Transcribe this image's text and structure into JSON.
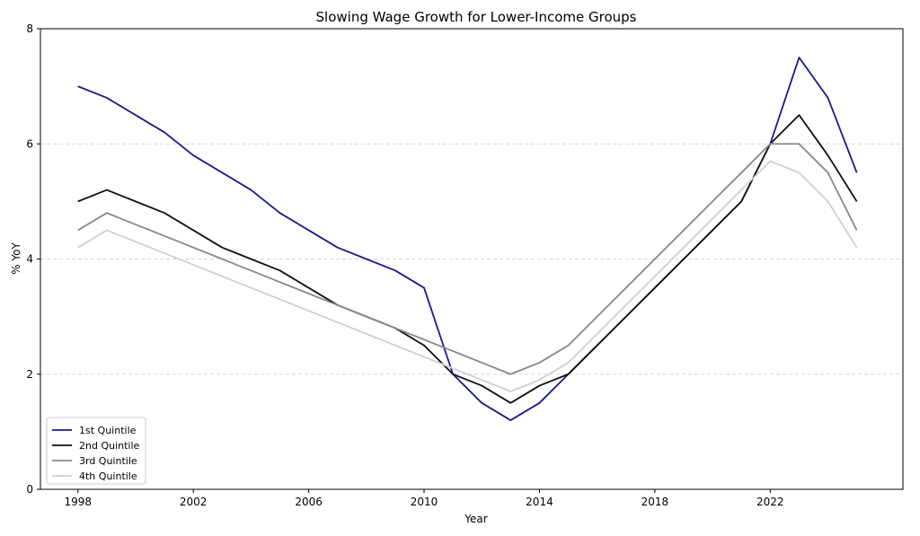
{
  "chart_data": {
    "type": "line",
    "title": "Slowing Wage Growth for Lower-Income Groups",
    "xlabel": "Year",
    "ylabel": "% YoY",
    "xlim": [
      1996.7,
      2026.6
    ],
    "ylim": [
      0,
      8
    ],
    "xticks": [
      1998,
      2002,
      2006,
      2010,
      2014,
      2018,
      2022
    ],
    "yticks": [
      0,
      2,
      4,
      6,
      8
    ],
    "grid": "y-dashed",
    "legend_position": "lower-left",
    "x": [
      1998,
      1999,
      2000,
      2001,
      2002,
      2003,
      2004,
      2005,
      2006,
      2007,
      2008,
      2009,
      2010,
      2011,
      2012,
      2013,
      2014,
      2015,
      2016,
      2017,
      2018,
      2019,
      2020,
      2021,
      2022,
      2023,
      2024,
      2025
    ],
    "series": [
      {
        "name": "1st Quintile",
        "color": "#1a1a8c",
        "values": [
          7.0,
          6.8,
          6.5,
          6.2,
          5.8,
          5.5,
          5.2,
          4.8,
          4.5,
          4.2,
          4.0,
          3.8,
          3.5,
          2.0,
          1.5,
          1.2,
          1.5,
          2.0,
          2.5,
          3.0,
          3.5,
          4.0,
          4.5,
          5.0,
          6.0,
          7.5,
          6.8,
          5.5
        ]
      },
      {
        "name": "2nd Quintile",
        "color": "#111111",
        "values": [
          5.0,
          5.2,
          5.0,
          4.8,
          4.5,
          4.2,
          4.0,
          3.8,
          3.5,
          3.2,
          3.0,
          2.8,
          2.5,
          2.0,
          1.8,
          1.5,
          1.8,
          2.0,
          2.5,
          3.0,
          3.5,
          4.0,
          4.5,
          5.0,
          6.0,
          6.5,
          5.8,
          5.0
        ]
      },
      {
        "name": "3rd Quintile",
        "color": "#888888",
        "values": [
          4.5,
          4.8,
          4.6,
          4.4,
          4.2,
          4.0,
          3.8,
          3.6,
          3.4,
          3.2,
          3.0,
          2.8,
          2.6,
          2.4,
          2.2,
          2.0,
          2.2,
          2.5,
          3.0,
          3.5,
          4.0,
          4.5,
          5.0,
          5.5,
          6.0,
          6.0,
          5.5,
          4.5
        ]
      },
      {
        "name": "4th Quintile",
        "color": "#d0d0d0",
        "values": [
          4.2,
          4.5,
          4.3,
          4.1,
          3.9,
          3.7,
          3.5,
          3.3,
          3.1,
          2.9,
          2.7,
          2.5,
          2.3,
          2.1,
          1.9,
          1.7,
          1.9,
          2.2,
          2.7,
          3.2,
          3.7,
          4.2,
          4.7,
          5.2,
          5.7,
          5.5,
          5.0,
          4.2
        ]
      }
    ]
  }
}
